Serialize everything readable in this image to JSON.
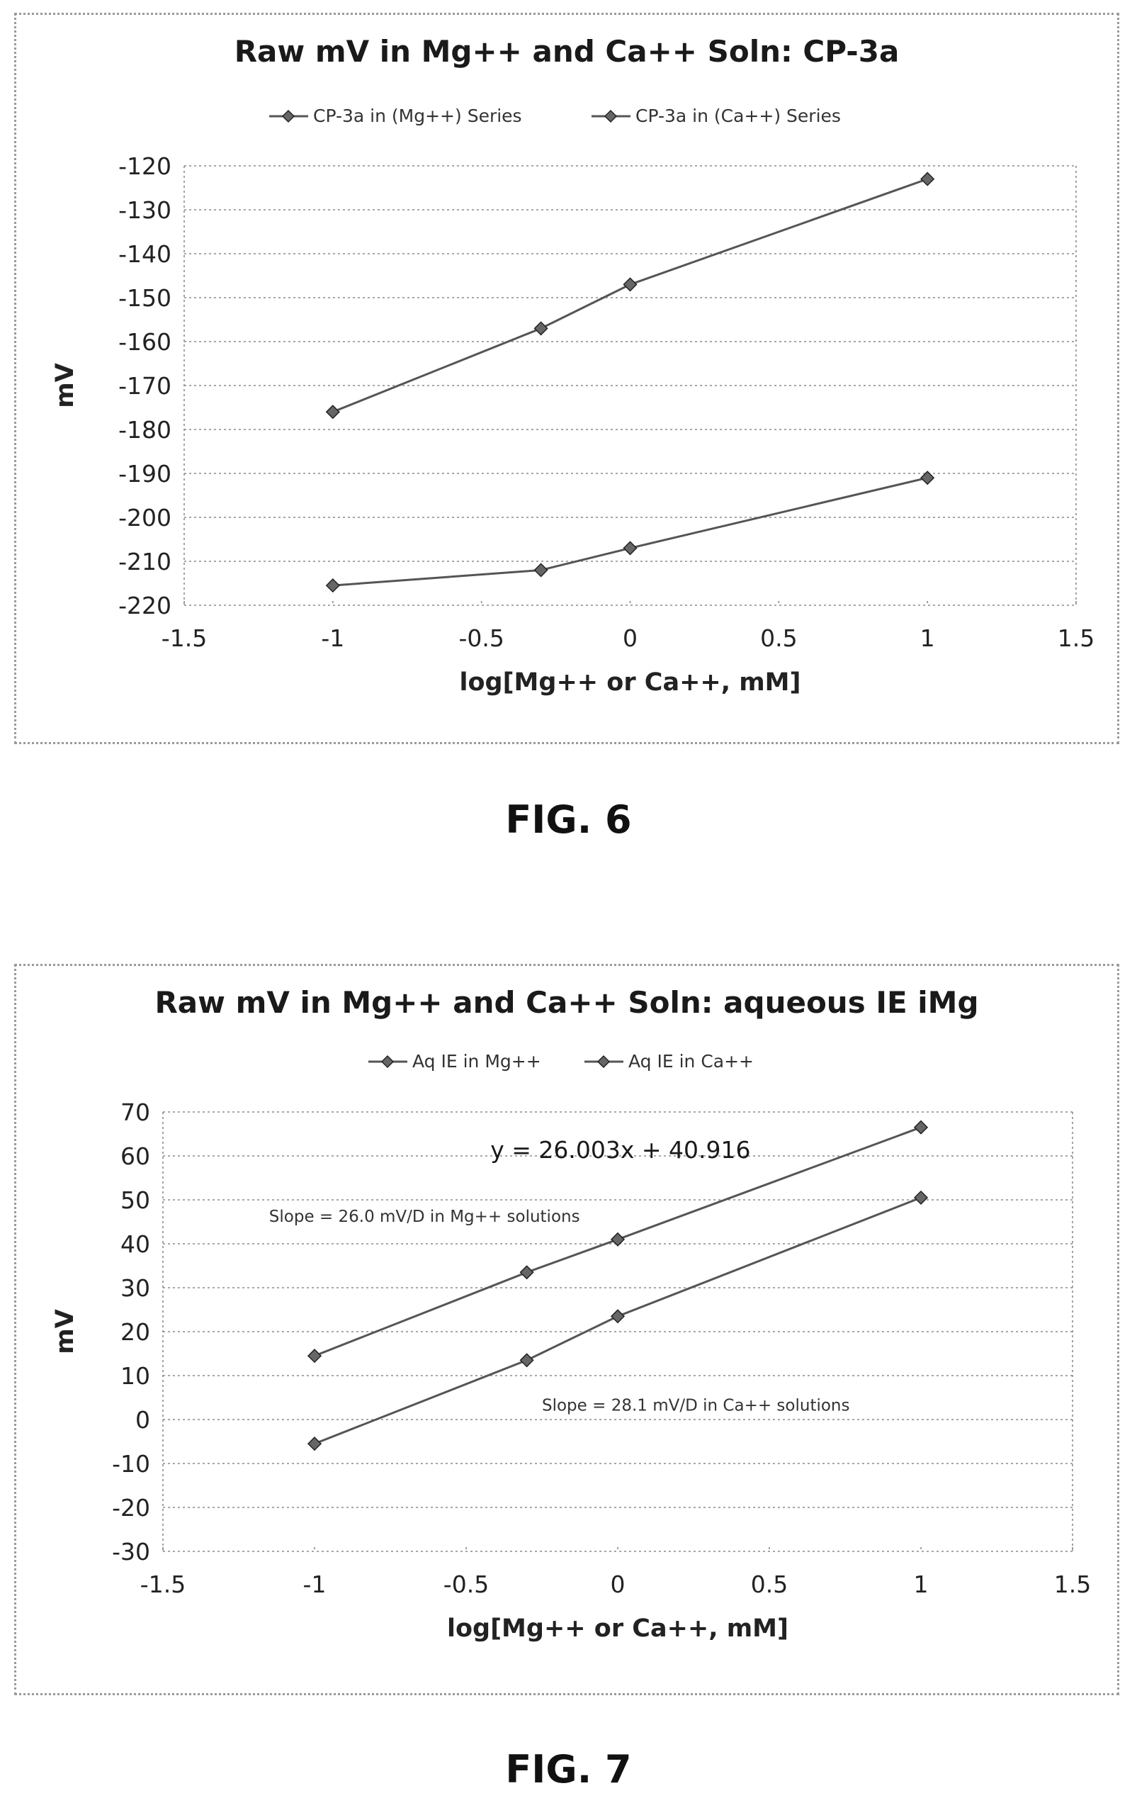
{
  "figures": [
    {
      "label": "FIG. 6"
    },
    {
      "label": "FIG. 7"
    }
  ],
  "chart_data": [
    {
      "type": "line",
      "title": "Raw mV in Mg++ and Ca++ Soln: CP-3a",
      "xlabel": "log[Mg++ or Ca++, mM]",
      "ylabel": "mV",
      "xlim": [
        -1.5,
        1.5
      ],
      "ylim": [
        -220,
        -120
      ],
      "xticks": [
        "-1.5",
        "-1",
        "-0.5",
        "0",
        "0.5",
        "1",
        "1.5"
      ],
      "yticks": [
        "-120",
        "-130",
        "-140",
        "-150",
        "-160",
        "-170",
        "-180",
        "-190",
        "-200",
        "-210",
        "-220"
      ],
      "grid": true,
      "legend_position": "top",
      "series": [
        {
          "name": "CP-3a in (Mg++) Series",
          "x": [
            -1,
            -0.3,
            0,
            1
          ],
          "y": [
            -176,
            -157,
            -147,
            -123
          ]
        },
        {
          "name": "CP-3a in (Ca++) Series",
          "x": [
            -1,
            -0.3,
            0,
            1
          ],
          "y": [
            -215.5,
            -212,
            -207,
            -191
          ]
        }
      ],
      "annotations": []
    },
    {
      "type": "line",
      "title": "Raw mV in Mg++ and Ca++ Soln: aqueous IE iMg",
      "xlabel": "log[Mg++ or Ca++, mM]",
      "ylabel": "mV",
      "xlim": [
        -1.5,
        1.5
      ],
      "ylim": [
        -30,
        70
      ],
      "xticks": [
        "-1.5",
        "-1",
        "-0.5",
        "0",
        "0.5",
        "1",
        "1.5"
      ],
      "yticks": [
        "70",
        "60",
        "50",
        "40",
        "30",
        "20",
        "10",
        "0",
        "-10",
        "-20",
        "-30"
      ],
      "grid": true,
      "legend_position": "top",
      "series": [
        {
          "name": "Aq IE in Mg++",
          "x": [
            -1,
            -0.3,
            0,
            1
          ],
          "y": [
            14.5,
            33.5,
            41,
            66.5
          ]
        },
        {
          "name": "Aq IE in Ca++",
          "x": [
            -1,
            -0.3,
            0,
            1
          ],
          "y": [
            -5.5,
            13.5,
            23.5,
            50.5
          ]
        }
      ],
      "annotations": [
        {
          "text": "y = 26.003x + 40.916",
          "x": -0.42,
          "y": 59.5
        },
        {
          "text": "Slope = 26.0 mV/D in Mg++ solutions",
          "x": -1.15,
          "y": 45
        },
        {
          "text": "Slope = 28.1 mV/D in Ca++ solutions",
          "x": -0.25,
          "y": 2
        }
      ]
    }
  ]
}
